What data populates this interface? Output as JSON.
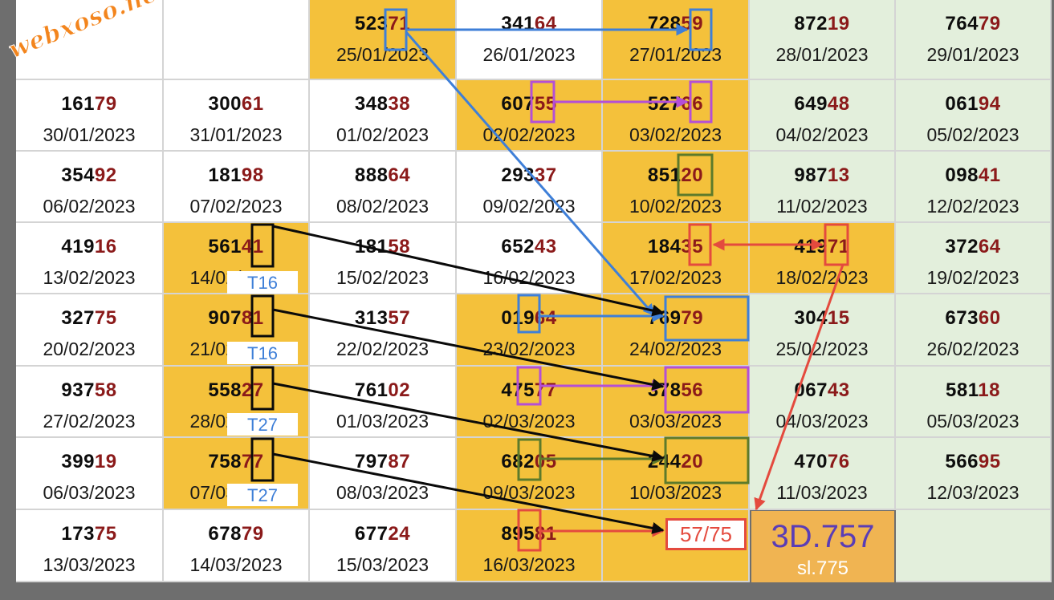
{
  "watermark": "webxoso.net",
  "rows": [
    [
      {
        "a": "",
        "b": "",
        "date": "",
        "bg": "w"
      },
      {
        "a": "",
        "b": "",
        "date": "",
        "bg": "w"
      },
      {
        "a": "523",
        "b": "71",
        "date": "25/01/2023",
        "bg": "y"
      },
      {
        "a": "341",
        "b": "64",
        "date": "26/01/2023",
        "bg": "w"
      },
      {
        "a": "728",
        "b": "59",
        "date": "27/01/2023",
        "bg": "y"
      },
      {
        "a": "872",
        "b": "19",
        "date": "28/01/2023",
        "bg": "g"
      },
      {
        "a": "764",
        "b": "79",
        "date": "29/01/2023",
        "bg": "g"
      }
    ],
    [
      {
        "a": "161",
        "b": "79",
        "date": "30/01/2023",
        "bg": "w"
      },
      {
        "a": "300",
        "b": "61",
        "date": "31/01/2023",
        "bg": "w"
      },
      {
        "a": "348",
        "b": "38",
        "date": "01/02/2023",
        "bg": "w"
      },
      {
        "a": "607",
        "b": "55",
        "date": "02/02/2023",
        "bg": "y"
      },
      {
        "a": "527",
        "b": "66",
        "date": "03/02/2023",
        "bg": "y"
      },
      {
        "a": "649",
        "b": "48",
        "date": "04/02/2023",
        "bg": "g"
      },
      {
        "a": "061",
        "b": "94",
        "date": "05/02/2023",
        "bg": "g"
      }
    ],
    [
      {
        "a": "354",
        "b": "92",
        "date": "06/02/2023",
        "bg": "w"
      },
      {
        "a": "181",
        "b": "98",
        "date": "07/02/2023",
        "bg": "w"
      },
      {
        "a": "888",
        "b": "64",
        "date": "08/02/2023",
        "bg": "w"
      },
      {
        "a": "293",
        "b": "37",
        "date": "09/02/2023",
        "bg": "w"
      },
      {
        "a": "851",
        "b": "20",
        "date": "10/02/2023",
        "bg": "y"
      },
      {
        "a": "987",
        "b": "13",
        "date": "11/02/2023",
        "bg": "g"
      },
      {
        "a": "098",
        "b": "41",
        "date": "12/02/2023",
        "bg": "g"
      }
    ],
    [
      {
        "a": "419",
        "b": "16",
        "date": "13/02/2023",
        "bg": "w"
      },
      {
        "a": "561",
        "b": "41",
        "date": "14/02/2023",
        "bg": "y"
      },
      {
        "a": "181",
        "b": "58",
        "date": "15/02/2023",
        "bg": "w"
      },
      {
        "a": "652",
        "b": "43",
        "date": "16/02/2023",
        "bg": "w"
      },
      {
        "a": "184",
        "b": "35",
        "date": "17/02/2023",
        "bg": "y"
      },
      {
        "a": "419",
        "b": "71",
        "date": "18/02/2023",
        "bg": "y"
      },
      {
        "a": "372",
        "b": "64",
        "date": "19/02/2023",
        "bg": "g"
      }
    ],
    [
      {
        "a": "327",
        "b": "75",
        "date": "20/02/2023",
        "bg": "w"
      },
      {
        "a": "907",
        "b": "81",
        "date": "21/02/2023",
        "bg": "y"
      },
      {
        "a": "313",
        "b": "57",
        "date": "22/02/2023",
        "bg": "w"
      },
      {
        "a": "019",
        "b": "64",
        "date": "23/02/2023",
        "bg": "y"
      },
      {
        "a": "769",
        "b": "79",
        "date": "24/02/2023",
        "bg": "y"
      },
      {
        "a": "304",
        "b": "15",
        "date": "25/02/2023",
        "bg": "g"
      },
      {
        "a": "673",
        "b": "60",
        "date": "26/02/2023",
        "bg": "g"
      }
    ],
    [
      {
        "a": "937",
        "b": "58",
        "date": "27/02/2023",
        "bg": "w"
      },
      {
        "a": "558",
        "b": "27",
        "date": "28/02/2023",
        "bg": "y"
      },
      {
        "a": "761",
        "b": "02",
        "date": "01/03/2023",
        "bg": "w"
      },
      {
        "a": "475",
        "b": "77",
        "date": "02/03/2023",
        "bg": "y"
      },
      {
        "a": "378",
        "b": "56",
        "date": "03/03/2023",
        "bg": "y"
      },
      {
        "a": "067",
        "b": "43",
        "date": "04/03/2023",
        "bg": "g"
      },
      {
        "a": "581",
        "b": "18",
        "date": "05/03/2023",
        "bg": "g"
      }
    ],
    [
      {
        "a": "399",
        "b": "19",
        "date": "06/03/2023",
        "bg": "w"
      },
      {
        "a": "758",
        "b": "77",
        "date": "07/03/2023",
        "bg": "y"
      },
      {
        "a": "797",
        "b": "87",
        "date": "08/03/2023",
        "bg": "w"
      },
      {
        "a": "682",
        "b": "05",
        "date": "09/03/2023",
        "bg": "y"
      },
      {
        "a": "244",
        "b": "20",
        "date": "10/03/2023",
        "bg": "y"
      },
      {
        "a": "470",
        "b": "76",
        "date": "11/03/2023",
        "bg": "g"
      },
      {
        "a": "566",
        "b": "95",
        "date": "12/03/2023",
        "bg": "g"
      }
    ],
    [
      {
        "a": "173",
        "b": "75",
        "date": "13/03/2023",
        "bg": "w"
      },
      {
        "a": "678",
        "b": "79",
        "date": "14/03/2023",
        "bg": "w"
      },
      {
        "a": "677",
        "b": "24",
        "date": "15/03/2023",
        "bg": "w"
      },
      {
        "a": "895",
        "b": "81",
        "date": "16/03/2023",
        "bg": "y"
      },
      {
        "a": "",
        "b": "",
        "date": "",
        "bg": "y"
      },
      {
        "a": "",
        "b": "",
        "date": "",
        "bg": "y"
      },
      {
        "a": "",
        "b": "",
        "date": "",
        "bg": "g"
      }
    ]
  ],
  "tlabels": [
    "T16",
    "T16",
    "T27",
    "T27"
  ],
  "answer": "57/75",
  "result_main": "3D.757",
  "result_sub": "sl.775",
  "colors": {
    "blue": "#3e7fd8",
    "purple": "#b44fd6",
    "green": "#5d7a2b",
    "red": "#e44a3e",
    "black": "#0a0a0a",
    "yellow": "#f4c13b",
    "greenbg": "#e3efdc"
  }
}
